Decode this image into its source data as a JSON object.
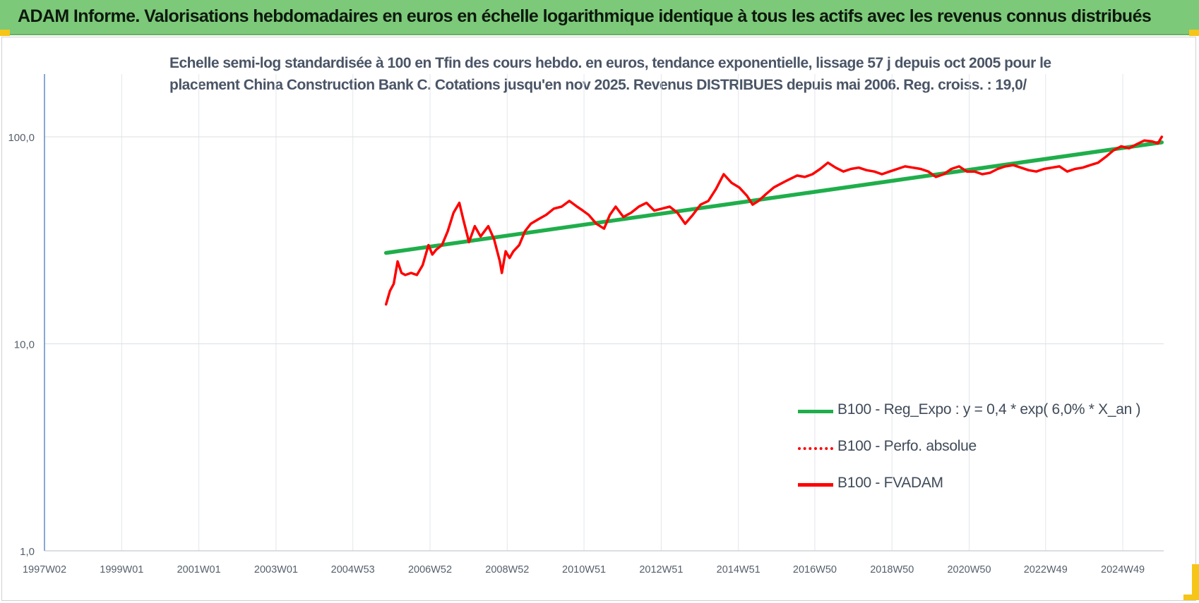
{
  "header": {
    "title": "ADAM Informe. Valorisations hebdomadaires en euros en échelle logarithmique identique à tous les actifs avec les revenus connus distribués"
  },
  "colors": {
    "banner": "#7dc97a",
    "trend": "#1fae4b",
    "fvadam": "#ff0000",
    "accent": "#f5c518"
  },
  "chart_data": {
    "type": "line",
    "title_lines": [
      "Echelle semi-log standardisée à 100 en Tfin des cours hebdo. en euros, tendance exponentielle, lissage 57 j depuis oct 2005 pour le",
      "placement China Construction Bank C. Cotations jusqu'en nov 2025.  Revenus DISTRIBUES depuis mai 2006. Reg. croiss. : 19,0/"
    ],
    "y_scale": "log",
    "ylim": [
      1,
      200
    ],
    "y_ticks": [
      {
        "value": 1,
        "label": "1,0"
      },
      {
        "value": 10,
        "label": "10,0"
      },
      {
        "value": 100,
        "label": "100,0"
      }
    ],
    "xlim": [
      1997.0,
      2026.0
    ],
    "x_ticks": [
      {
        "value": 1997.0,
        "label": "1997W02"
      },
      {
        "value": 1999.0,
        "label": "1999W01"
      },
      {
        "value": 2001.0,
        "label": "2001W01"
      },
      {
        "value": 2003.0,
        "label": "2003W01"
      },
      {
        "value": 2004.99,
        "label": "2004W53"
      },
      {
        "value": 2006.99,
        "label": "2006W52"
      },
      {
        "value": 2008.99,
        "label": "2008W52"
      },
      {
        "value": 2010.98,
        "label": "2010W51"
      },
      {
        "value": 2012.98,
        "label": "2012W51"
      },
      {
        "value": 2014.98,
        "label": "2014W51"
      },
      {
        "value": 2016.96,
        "label": "2016W50"
      },
      {
        "value": 2018.96,
        "label": "2018W50"
      },
      {
        "value": 2020.96,
        "label": "2020W50"
      },
      {
        "value": 2022.94,
        "label": "2022W49"
      },
      {
        "value": 2024.94,
        "label": "2024W49"
      }
    ],
    "grid": true,
    "legend_position": "bottom-right",
    "series": [
      {
        "name": "B100 - Reg_Expo : y = 0,4 * exp( 6,0% *  X_an )",
        "color": "#1fae4b",
        "style": "solid",
        "x": [
          2005.85,
          2025.95
        ],
        "y": [
          27.5,
          94
        ]
      },
      {
        "name": "B100 - Perfo. absolue",
        "color": "#ff0000",
        "style": "dotted",
        "x": [],
        "y": []
      },
      {
        "name": "B100 - FVADAM",
        "color": "#ff0000",
        "style": "solid",
        "x": [
          2005.85,
          2005.95,
          2006.05,
          2006.15,
          2006.25,
          2006.35,
          2006.5,
          2006.65,
          2006.8,
          2006.95,
          2007.05,
          2007.15,
          2007.3,
          2007.45,
          2007.6,
          2007.75,
          2007.85,
          2008.0,
          2008.15,
          2008.3,
          2008.5,
          2008.65,
          2008.8,
          2008.85,
          2008.95,
          2009.05,
          2009.15,
          2009.3,
          2009.45,
          2009.6,
          2009.8,
          2010.0,
          2010.2,
          2010.4,
          2010.6,
          2010.8,
          2010.95,
          2011.1,
          2011.3,
          2011.5,
          2011.65,
          2011.8,
          2012.0,
          2012.2,
          2012.4,
          2012.6,
          2012.8,
          2013.0,
          2013.2,
          2013.4,
          2013.6,
          2013.8,
          2014.0,
          2014.2,
          2014.4,
          2014.6,
          2014.8,
          2015.0,
          2015.2,
          2015.35,
          2015.5,
          2015.7,
          2015.9,
          2016.05,
          2016.2,
          2016.35,
          2016.5,
          2016.7,
          2016.9,
          2017.1,
          2017.3,
          2017.5,
          2017.7,
          2017.9,
          2018.1,
          2018.3,
          2018.5,
          2018.7,
          2018.9,
          2019.1,
          2019.3,
          2019.5,
          2019.7,
          2019.9,
          2020.1,
          2020.3,
          2020.5,
          2020.7,
          2020.9,
          2021.1,
          2021.3,
          2021.5,
          2021.7,
          2021.9,
          2022.1,
          2022.3,
          2022.5,
          2022.7,
          2022.9,
          2023.1,
          2023.3,
          2023.5,
          2023.7,
          2023.9,
          2024.1,
          2024.3,
          2024.5,
          2024.7,
          2024.9,
          2025.1,
          2025.3,
          2025.5,
          2025.7,
          2025.85,
          2025.95
        ],
        "y": [
          15.5,
          18,
          19.5,
          25,
          22,
          21.5,
          22,
          21.5,
          24,
          30,
          27,
          28.5,
          30,
          35,
          43,
          48,
          40,
          31,
          37,
          33,
          37,
          32,
          25,
          22,
          28,
          26,
          28,
          30,
          35,
          38,
          40,
          42,
          45,
          46,
          49,
          46,
          44,
          42,
          38,
          36,
          42,
          46,
          41,
          43,
          46,
          48,
          44,
          45,
          46,
          43,
          38,
          42,
          47,
          49,
          56,
          66,
          60,
          57,
          52,
          47,
          49,
          53,
          57,
          59,
          61,
          63,
          65,
          64,
          66,
          70,
          75,
          71,
          68,
          70,
          71,
          69,
          68,
          66,
          68,
          70,
          72,
          71,
          70,
          68,
          64,
          66,
          70,
          72,
          68,
          68,
          66,
          67,
          70,
          72,
          73,
          71,
          69,
          68,
          70,
          71,
          72,
          68,
          70,
          71,
          73,
          75,
          80,
          86,
          90,
          88,
          92,
          96,
          95,
          93,
          100
        ]
      }
    ]
  }
}
